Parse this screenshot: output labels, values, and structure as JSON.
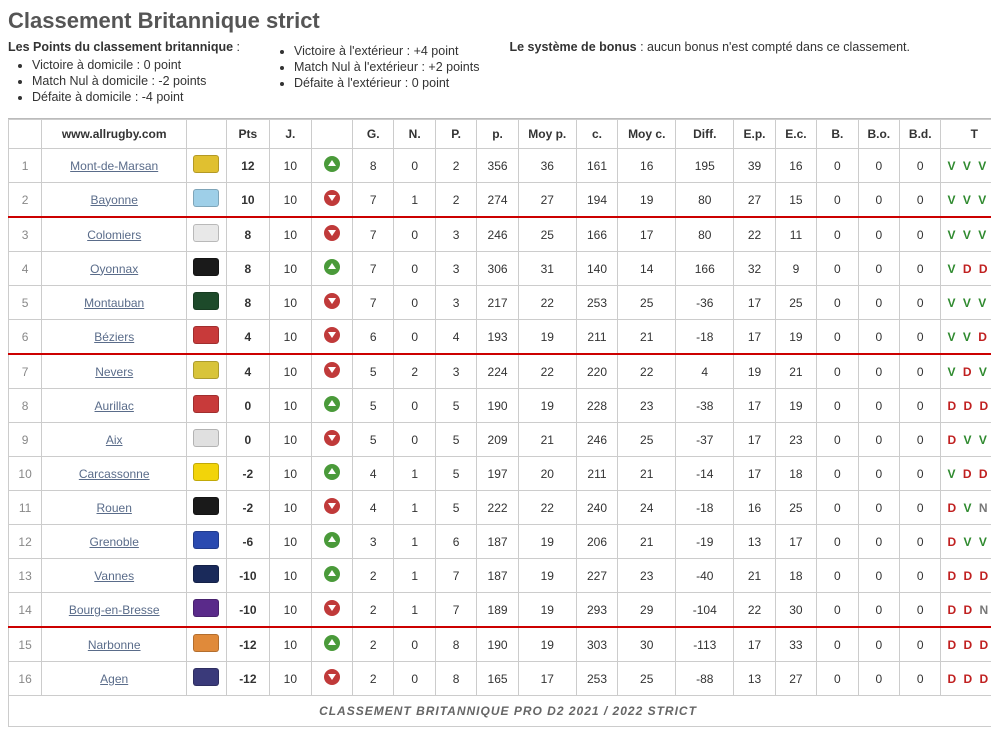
{
  "title": "Classement Britannique strict",
  "intro": {
    "label": "Les Points du classement britannique",
    "home": [
      "Victoire à domicile : 0 point",
      "Match Nul à domicile : -2 points",
      "Défaite à domicile : -4 point"
    ],
    "away": [
      "Victoire à l'extérieur : +4 point",
      "Match Nul à l'extérieur : +2 points",
      "Défaite à l'extérieur : 0 point"
    ],
    "bonus_label": "Le système de bonus",
    "bonus_text": " : aucun bonus n'est compté dans ce classement."
  },
  "site": "www.allrugby.com",
  "columns": [
    "Pts",
    "J.",
    "",
    "G.",
    "N.",
    "P.",
    "p.",
    "Moy p.",
    "c.",
    "Moy c.",
    "Diff.",
    "E.p.",
    "E.c.",
    "B.",
    "B.o.",
    "B.d.",
    "T"
  ],
  "footer": "CLASSEMENT BRITANNIQUE PRO D2 2021 / 2022 STRICT",
  "separators_after": [
    2,
    6,
    14
  ],
  "trend_colors": {
    "up": "#4a9a3a",
    "down": "#c03a3a"
  },
  "form_colors": {
    "V": "#2f8a2f",
    "D": "#c02020",
    "N": "#777777"
  },
  "rows": [
    {
      "rank": 1,
      "team": "Mont-de-Marsan",
      "logo": "#e0c030",
      "pts": 12,
      "j": 10,
      "trend": "up",
      "g": 8,
      "n": 0,
      "p": 2,
      "pf": 356,
      "moyp": 36,
      "pa": 161,
      "moyc": 16,
      "diff": 195,
      "ep": 39,
      "ec": 16,
      "b": 0,
      "bo": 0,
      "bd": 0,
      "form": "VVV"
    },
    {
      "rank": 2,
      "team": "Bayonne",
      "logo": "#9ecfe8",
      "pts": 10,
      "j": 10,
      "trend": "down",
      "g": 7,
      "n": 1,
      "p": 2,
      "pf": 274,
      "moyp": 27,
      "pa": 194,
      "moyc": 19,
      "diff": 80,
      "ep": 27,
      "ec": 15,
      "b": 0,
      "bo": 0,
      "bd": 0,
      "form": "VVV"
    },
    {
      "rank": 3,
      "team": "Colomiers",
      "logo": "#e8e8e8",
      "pts": 8,
      "j": 10,
      "trend": "down",
      "g": 7,
      "n": 0,
      "p": 3,
      "pf": 246,
      "moyp": 25,
      "pa": 166,
      "moyc": 17,
      "diff": 80,
      "ep": 22,
      "ec": 11,
      "b": 0,
      "bo": 0,
      "bd": 0,
      "form": "VVV"
    },
    {
      "rank": 4,
      "team": "Oyonnax",
      "logo": "#1a1a1a",
      "pts": 8,
      "j": 10,
      "trend": "up",
      "g": 7,
      "n": 0,
      "p": 3,
      "pf": 306,
      "moyp": 31,
      "pa": 140,
      "moyc": 14,
      "diff": 166,
      "ep": 32,
      "ec": 9,
      "b": 0,
      "bo": 0,
      "bd": 0,
      "form": "VDD"
    },
    {
      "rank": 5,
      "team": "Montauban",
      "logo": "#1d4a2a",
      "pts": 8,
      "j": 10,
      "trend": "down",
      "g": 7,
      "n": 0,
      "p": 3,
      "pf": 217,
      "moyp": 22,
      "pa": 253,
      "moyc": 25,
      "diff": -36,
      "ep": 17,
      "ec": 25,
      "b": 0,
      "bo": 0,
      "bd": 0,
      "form": "VVV"
    },
    {
      "rank": 6,
      "team": "Béziers",
      "logo": "#c83a3a",
      "pts": 4,
      "j": 10,
      "trend": "down",
      "g": 6,
      "n": 0,
      "p": 4,
      "pf": 193,
      "moyp": 19,
      "pa": 211,
      "moyc": 21,
      "diff": -18,
      "ep": 17,
      "ec": 19,
      "b": 0,
      "bo": 0,
      "bd": 0,
      "form": "VVD"
    },
    {
      "rank": 7,
      "team": "Nevers",
      "logo": "#d8c43a",
      "pts": 4,
      "j": 10,
      "trend": "down",
      "g": 5,
      "n": 2,
      "p": 3,
      "pf": 224,
      "moyp": 22,
      "pa": 220,
      "moyc": 22,
      "diff": 4,
      "ep": 19,
      "ec": 21,
      "b": 0,
      "bo": 0,
      "bd": 0,
      "form": "VDV"
    },
    {
      "rank": 8,
      "team": "Aurillac",
      "logo": "#c83a3a",
      "pts": 0,
      "j": 10,
      "trend": "up",
      "g": 5,
      "n": 0,
      "p": 5,
      "pf": 190,
      "moyp": 19,
      "pa": 228,
      "moyc": 23,
      "diff": -38,
      "ep": 17,
      "ec": 19,
      "b": 0,
      "bo": 0,
      "bd": 0,
      "form": "DDD"
    },
    {
      "rank": 9,
      "team": "Aix",
      "logo": "#e0e0e0",
      "pts": 0,
      "j": 10,
      "trend": "down",
      "g": 5,
      "n": 0,
      "p": 5,
      "pf": 209,
      "moyp": 21,
      "pa": 246,
      "moyc": 25,
      "diff": -37,
      "ep": 17,
      "ec": 23,
      "b": 0,
      "bo": 0,
      "bd": 0,
      "form": "DVV"
    },
    {
      "rank": 10,
      "team": "Carcassonne",
      "logo": "#f2d40a",
      "pts": -2,
      "j": 10,
      "trend": "up",
      "g": 4,
      "n": 1,
      "p": 5,
      "pf": 197,
      "moyp": 20,
      "pa": 211,
      "moyc": 21,
      "diff": -14,
      "ep": 17,
      "ec": 18,
      "b": 0,
      "bo": 0,
      "bd": 0,
      "form": "VDD"
    },
    {
      "rank": 11,
      "team": "Rouen",
      "logo": "#1a1a1a",
      "pts": -2,
      "j": 10,
      "trend": "down",
      "g": 4,
      "n": 1,
      "p": 5,
      "pf": 222,
      "moyp": 22,
      "pa": 240,
      "moyc": 24,
      "diff": -18,
      "ep": 16,
      "ec": 25,
      "b": 0,
      "bo": 0,
      "bd": 0,
      "form": "DVN"
    },
    {
      "rank": 12,
      "team": "Grenoble",
      "logo": "#2a4ab0",
      "pts": -6,
      "j": 10,
      "trend": "up",
      "g": 3,
      "n": 1,
      "p": 6,
      "pf": 187,
      "moyp": 19,
      "pa": 206,
      "moyc": 21,
      "diff": -19,
      "ep": 13,
      "ec": 17,
      "b": 0,
      "bo": 0,
      "bd": 0,
      "form": "DVV"
    },
    {
      "rank": 13,
      "team": "Vannes",
      "logo": "#1a2a5a",
      "pts": -10,
      "j": 10,
      "trend": "up",
      "g": 2,
      "n": 1,
      "p": 7,
      "pf": 187,
      "moyp": 19,
      "pa": 227,
      "moyc": 23,
      "diff": -40,
      "ep": 21,
      "ec": 18,
      "b": 0,
      "bo": 0,
      "bd": 0,
      "form": "DDD"
    },
    {
      "rank": 14,
      "team": "Bourg-en-Bresse",
      "logo": "#5a2a8a",
      "pts": -10,
      "j": 10,
      "trend": "down",
      "g": 2,
      "n": 1,
      "p": 7,
      "pf": 189,
      "moyp": 19,
      "pa": 293,
      "moyc": 29,
      "diff": -104,
      "ep": 22,
      "ec": 30,
      "b": 0,
      "bo": 0,
      "bd": 0,
      "form": "DDN"
    },
    {
      "rank": 15,
      "team": "Narbonne",
      "logo": "#e08a3a",
      "pts": -12,
      "j": 10,
      "trend": "up",
      "g": 2,
      "n": 0,
      "p": 8,
      "pf": 190,
      "moyp": 19,
      "pa": 303,
      "moyc": 30,
      "diff": -113,
      "ep": 17,
      "ec": 33,
      "b": 0,
      "bo": 0,
      "bd": 0,
      "form": "DDD"
    },
    {
      "rank": 16,
      "team": "Agen",
      "logo": "#3a3a7a",
      "pts": -12,
      "j": 10,
      "trend": "down",
      "g": 2,
      "n": 0,
      "p": 8,
      "pf": 165,
      "moyp": 17,
      "pa": 253,
      "moyc": 25,
      "diff": -88,
      "ep": 13,
      "ec": 27,
      "b": 0,
      "bo": 0,
      "bd": 0,
      "form": "DDD"
    }
  ]
}
